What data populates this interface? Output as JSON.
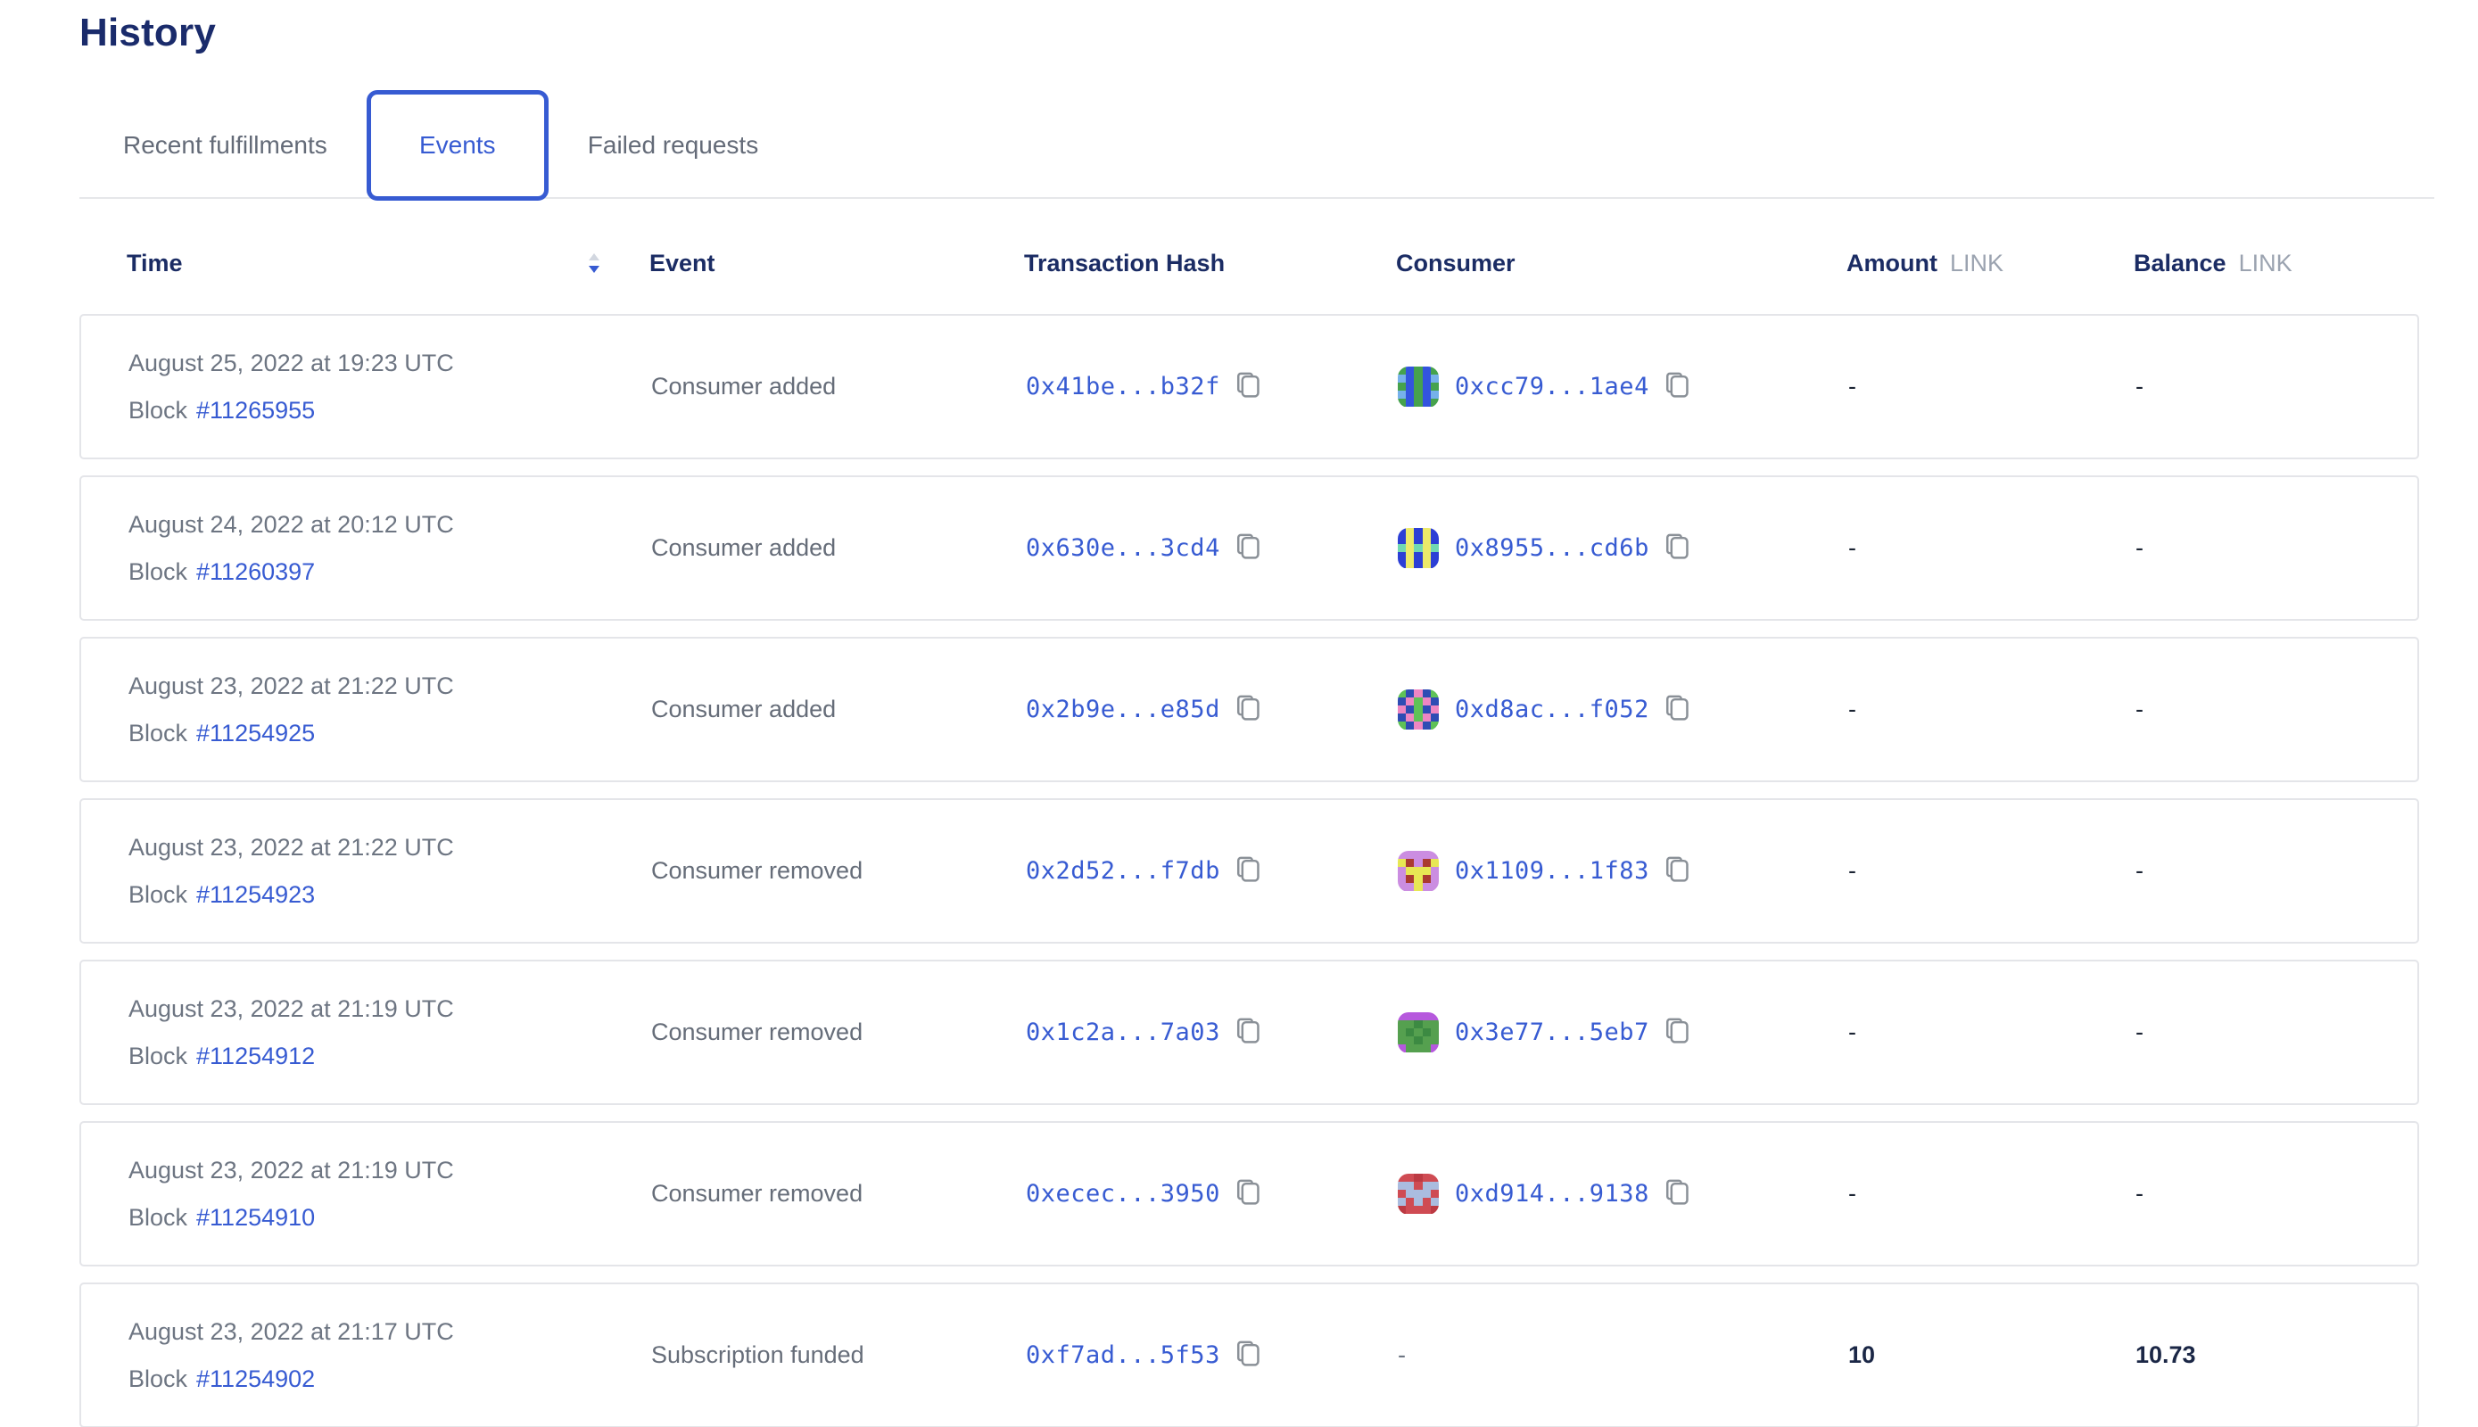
{
  "page": {
    "title": "History"
  },
  "tabs": [
    {
      "label": "Recent fulfillments",
      "active": false
    },
    {
      "label": "Events",
      "active": true
    },
    {
      "label": "Failed requests",
      "active": false
    }
  ],
  "table": {
    "columns": {
      "time": "Time",
      "event": "Event",
      "tx_hash": "Transaction Hash",
      "consumer": "Consumer",
      "amount": "Amount",
      "balance": "Balance",
      "unit": "LINK"
    },
    "rows": [
      {
        "date": "August 25, 2022 at 19:23 UTC",
        "block_label": "Block",
        "block": "#11265955",
        "event": "Consumer added",
        "tx_hash": "0x41be...b32f",
        "consumer": "0xcc79...1ae4",
        "amount": "-",
        "balance": "-",
        "avatar": {
          "palette": [
            "#46a24d",
            "#3354de",
            "#76b1ea"
          ],
          "pixels": [
            "01010",
            "21012",
            "01010",
            "21012",
            "01010"
          ]
        }
      },
      {
        "date": "August 24, 2022 at 20:12 UTC",
        "block_label": "Block",
        "block": "#11260397",
        "event": "Consumer added",
        "tx_hash": "0x630e...3cd4",
        "consumer": "0x8955...cd6b",
        "amount": "-",
        "balance": "-",
        "avatar": {
          "palette": [
            "#2c3fd5",
            "#ece96a",
            "#71d8b1"
          ],
          "pixels": [
            "01010",
            "01010",
            "21212",
            "01010",
            "01010"
          ]
        }
      },
      {
        "date": "August 23, 2022 at 21:22 UTC",
        "block_label": "Block",
        "block": "#11254925",
        "event": "Consumer added",
        "tx_hash": "0x2b9e...e85d",
        "consumer": "0xd8ac...f052",
        "amount": "-",
        "balance": "-",
        "avatar": {
          "palette": [
            "#5fc257",
            "#ee86c3",
            "#2e4cb4"
          ],
          "pixels": [
            "02120",
            "21012",
            "12021",
            "21012",
            "02120"
          ]
        }
      },
      {
        "date": "August 23, 2022 at 21:22 UTC",
        "block_label": "Block",
        "block": "#11254923",
        "event": "Consumer removed",
        "tx_hash": "0x2d52...f7db",
        "consumer": "0x1109...1f83",
        "amount": "-",
        "balance": "-",
        "avatar": {
          "palette": [
            "#cb8de1",
            "#e7e754",
            "#aa3a30"
          ],
          "pixels": [
            "00000",
            "12021",
            "01110",
            "02120",
            "00100"
          ]
        }
      },
      {
        "date": "August 23, 2022 at 21:19 UTC",
        "block_label": "Block",
        "block": "#11254912",
        "event": "Consumer removed",
        "tx_hash": "0x1c2a...7a03",
        "consumer": "0x3e77...5eb7",
        "amount": "-",
        "balance": "-",
        "avatar": {
          "palette": [
            "#55a04f",
            "#b659dd",
            "#3c8a42"
          ],
          "pixels": [
            "11111",
            "00200",
            "02020",
            "00200",
            "10001"
          ]
        }
      },
      {
        "date": "August 23, 2022 at 21:19 UTC",
        "block_label": "Block",
        "block": "#11254910",
        "event": "Consumer removed",
        "tx_hash": "0xecec...3950",
        "consumer": "0xd914...9138",
        "amount": "-",
        "balance": "-",
        "avatar": {
          "palette": [
            "#cf4b53",
            "#aabcdf",
            "#bc3a43"
          ],
          "pixels": [
            "00200",
            "11011",
            "01110",
            "10101",
            "20002"
          ]
        }
      },
      {
        "date": "August 23, 2022 at 21:17 UTC",
        "block_label": "Block",
        "block": "#11254902",
        "event": "Subscription funded",
        "tx_hash": "0xf7ad...5f53",
        "consumer": "-",
        "amount": "10",
        "balance": "10.73",
        "avatar": null
      }
    ]
  },
  "colors": {
    "accent_blue": "#375bd2",
    "heading_navy": "#1a2b6b",
    "body_gray": "#6d7582",
    "unit_gray": "#9ba3b0",
    "divider": "#e6e7ea",
    "card_border": "#e4e5e9"
  }
}
